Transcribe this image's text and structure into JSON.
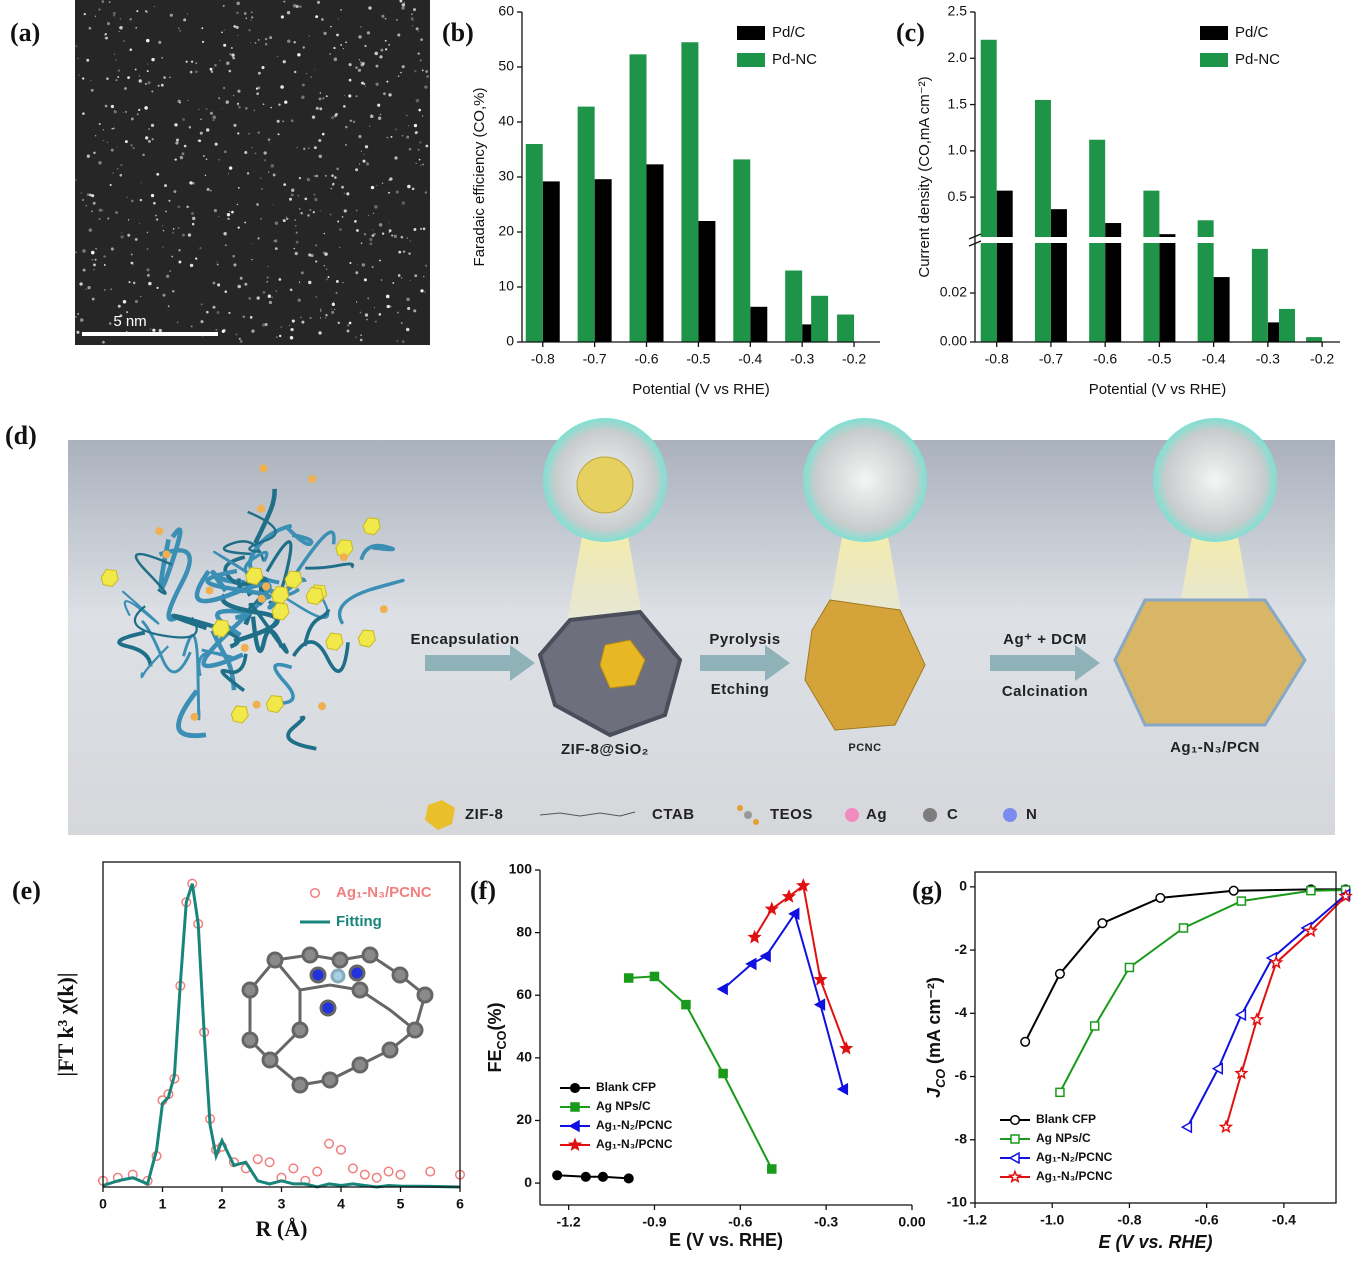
{
  "panels": {
    "a": {
      "label": "(a)",
      "scale_bar": "5 nm"
    },
    "d": {
      "label": "(d)",
      "arrows": [
        {
          "top": "Encapsulation"
        },
        {
          "top": "Pyrolysis",
          "bottom": "Etching"
        },
        {
          "top": "Ag⁺ + DCM",
          "bottom": "Calcination"
        }
      ],
      "products": [
        "ZIF-8@SiO₂",
        "PCNC",
        "Ag₁-N₃/PCN"
      ],
      "legend": [
        "ZIF-8",
        "CTAB",
        "TEOS",
        "Ag",
        "C",
        "N"
      ]
    }
  },
  "chart_data": [
    {
      "label": "(b)",
      "type": "bar",
      "ylabel": "Faradaic efficiency (CO,%)",
      "xlabel": "Potential (V vs RHE)",
      "x": [
        -0.8,
        -0.7,
        -0.6,
        -0.5,
        -0.4,
        -0.3,
        -0.25,
        -0.2
      ],
      "xlim": [
        -0.84,
        -0.15
      ],
      "xticks": [
        -0.8,
        -0.7,
        -0.6,
        -0.5,
        -0.4,
        -0.3,
        -0.2
      ],
      "ylim": [
        0,
        60
      ],
      "yticks": [
        0,
        10,
        20,
        30,
        40,
        50,
        60
      ],
      "legend": "upper right",
      "series": [
        {
          "name": "Pd/C",
          "color": "#000000",
          "values": [
            29.2,
            29.6,
            32.3,
            22,
            6.4,
            3.2,
            null,
            null
          ]
        },
        {
          "name": "Pd-NC",
          "color": "#1e9448",
          "values": [
            36,
            42.8,
            52.3,
            54.5,
            33.2,
            13,
            8.4,
            5
          ]
        }
      ]
    },
    {
      "label": "(c)",
      "type": "broken_bar",
      "ylabel": "Current density (CO,mA cm⁻²)",
      "xlabel": "Potential (V vs RHE)",
      "x": [
        -0.8,
        -0.7,
        -0.6,
        -0.5,
        -0.4,
        -0.3,
        -0.25,
        -0.2
      ],
      "xlim": [
        -0.84,
        -0.167
      ],
      "xticks": [
        -0.8,
        -0.7,
        -0.6,
        -0.5,
        -0.4,
        -0.3,
        -0.2
      ],
      "ylim_lower": [
        0,
        0.04
      ],
      "yticks_lower": [
        {
          "value": 0,
          "label": "0.00"
        },
        {
          "value": 0.02,
          "label": "0.02"
        }
      ],
      "ylim_upper": [
        0.08,
        2.5
      ],
      "yticks_upper": [
        0.5,
        {
          "value": 1,
          "label": "1.0"
        },
        1.5,
        {
          "value": 2,
          "label": "2.0"
        },
        2.5
      ],
      "legend": "upper right",
      "series": [
        {
          "name": "Pd/C",
          "color": "#000000",
          "values": [
            0.57,
            0.37,
            0.22,
            0.1,
            0.0265,
            0.008,
            null,
            null
          ]
        },
        {
          "name": "Pd-NC",
          "color": "#1e9448",
          "values": [
            2.2,
            1.55,
            1.12,
            0.57,
            0.25,
            0.038,
            0.0135,
            0.002
          ]
        }
      ]
    },
    {
      "label": "(e)",
      "type": "line",
      "ylabel": "|FT k³ χ(k)|",
      "xlabel": "R (Å)",
      "x": [
        0,
        0.25,
        0.5,
        0.75,
        0.9,
        1.0,
        1.1,
        1.2,
        1.3,
        1.4,
        1.5,
        1.6,
        1.7,
        1.8,
        1.9,
        2.0,
        2.2,
        2.4,
        2.6,
        2.8,
        3.0,
        3.2,
        3.4,
        3.6,
        3.8,
        4.0,
        4.2,
        4.4,
        4.6,
        4.8,
        5.0,
        5.5,
        6.0
      ],
      "xlim": [
        0,
        6
      ],
      "xticks": [
        0,
        1,
        2,
        3,
        4,
        5,
        6
      ],
      "ylim": [
        0,
        1.05
      ],
      "legend": "upper right",
      "open_markers": true,
      "series": [
        {
          "name": "Ag₁-N₃/PCNC",
          "color": "#f08080",
          "marker": "circle",
          "line": false,
          "values": [
            0.02,
            0.03,
            0.04,
            0.02,
            0.1,
            0.28,
            0.3,
            0.35,
            0.65,
            0.92,
            0.98,
            0.85,
            0.5,
            0.22,
            0.12,
            0.13,
            0.08,
            0.06,
            0.09,
            0.08,
            0.03,
            0.06,
            0.02,
            0.05,
            0.14,
            0.12,
            0.06,
            0.04,
            0.03,
            0.05,
            0.04,
            0.05,
            0.04
          ]
        },
        {
          "name": "Fitting",
          "color": "#17857a",
          "values": [
            0.005,
            0.02,
            0.03,
            0.01,
            0.12,
            0.27,
            0.29,
            0.36,
            0.66,
            0.92,
            0.98,
            0.85,
            0.5,
            0.2,
            0.1,
            0.15,
            0.07,
            0.08,
            0.02,
            0.01,
            0.02,
            0.01,
            0.01,
            0,
            0.01,
            0.005,
            0.01,
            0.005,
            0,
            0.005,
            0.003,
            0.002,
            0
          ]
        }
      ]
    },
    {
      "label": "(f)",
      "type": "line",
      "ylabel": "FE",
      "ylabel_sub": "CO",
      "ylabel_end": "(%)",
      "xlabel": "E (V vs. RHE)",
      "xlim": [
        -1.3,
        0
      ],
      "xticks": [
        -1.2,
        -0.9,
        -0.6,
        -0.3,
        {
          "value": 0,
          "label": "0.00"
        }
      ],
      "ylim": [
        -7,
        100
      ],
      "yticks": [
        0,
        20,
        40,
        60,
        80,
        100
      ],
      "legend": "lower left",
      "series": [
        {
          "name": "Blank CFP",
          "color": "#000000",
          "marker": "circle",
          "x": [
            -1.24,
            -1.14,
            -1.08,
            -0.99
          ],
          "values": [
            2.5,
            2,
            2,
            1.5
          ]
        },
        {
          "name": "Ag NPs/C",
          "color": "#1a9a1a",
          "marker": "square",
          "x": [
            -0.99,
            -0.9,
            -0.79,
            -0.66,
            -0.49
          ],
          "values": [
            65.5,
            66,
            57,
            35,
            4.5
          ]
        },
        {
          "name": "Ag₁-N₂/PCNC",
          "color": "#1010e0",
          "marker": "triangle-left",
          "x": [
            -0.66,
            -0.56,
            -0.51,
            -0.41,
            -0.32,
            -0.24
          ],
          "values": [
            62,
            70,
            72.5,
            86,
            57,
            30
          ]
        },
        {
          "name": "Ag₁-N₃/PCNC",
          "color": "#e01010",
          "marker": "star",
          "x": [
            -0.55,
            -0.49,
            -0.43,
            -0.38,
            -0.32,
            -0.23
          ],
          "values": [
            78.5,
            87.5,
            91.5,
            95,
            65,
            43
          ]
        }
      ]
    },
    {
      "label": "(g)",
      "type": "line",
      "ylabel": "J",
      "ylabel_sub": "CO",
      "ylabel_end": " (mA cm⁻²)",
      "xlabel": "E (V vs. RHE)",
      "xlim": [
        -1.2,
        -0.265
      ],
      "xticks": [
        -1.2,
        {
          "value": -1,
          "label": "-1.0"
        },
        -0.8,
        -0.6,
        -0.4
      ],
      "ylim": [
        -10,
        0.47
      ],
      "yticks": [
        0,
        -2,
        -4,
        -6,
        -8,
        -10
      ],
      "legend": "lower left",
      "open_markers": true,
      "series": [
        {
          "name": "Blank CFP",
          "color": "#000000",
          "marker": "circle",
          "x": [
            -1.07,
            -0.98,
            -0.87,
            -0.72,
            -0.53,
            -0.33,
            -0.24
          ],
          "values": [
            -4.9,
            -2.75,
            -1.15,
            -0.35,
            -0.12,
            -0.08,
            -0.08
          ]
        },
        {
          "name": "Ag NPs/C",
          "color": "#1a9a1a",
          "marker": "square",
          "x": [
            -0.98,
            -0.89,
            -0.8,
            -0.66,
            -0.51,
            -0.33,
            -0.24
          ],
          "values": [
            -6.5,
            -4.4,
            -2.55,
            -1.3,
            -0.45,
            -0.12,
            -0.1
          ]
        },
        {
          "name": "Ag₁-N₂/PCNC",
          "color": "#1010e0",
          "marker": "triangle-left",
          "x": [
            -0.65,
            -0.57,
            -0.51,
            -0.43,
            -0.34,
            -0.24
          ],
          "values": [
            -7.6,
            -5.75,
            -4.05,
            -2.25,
            -1.3,
            -0.25
          ]
        },
        {
          "name": "Ag₁-N₃/PCNC",
          "color": "#e01010",
          "marker": "star",
          "x": [
            -0.55,
            -0.51,
            -0.47,
            -0.42,
            -0.33,
            -0.24
          ],
          "values": [
            -7.6,
            -5.9,
            -4.2,
            -2.4,
            -1.4,
            -0.3
          ]
        }
      ]
    }
  ]
}
